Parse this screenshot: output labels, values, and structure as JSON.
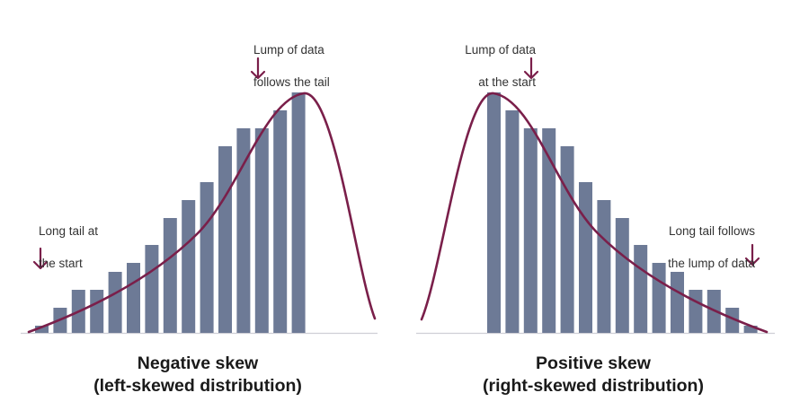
{
  "colors": {
    "bar": "#6d7a96",
    "curve": "#7a1f4a",
    "arrow": "#7a1f4a",
    "baseline": "#cfcfd6",
    "text": "#333333"
  },
  "chart_data": [
    {
      "type": "bar",
      "subtitle_line1": "Negative skew",
      "subtitle_line2": "(left-skewed distribution)",
      "values": [
        0.4,
        1.4,
        2.4,
        2.4,
        3.4,
        3.9,
        4.9,
        6.4,
        7.4,
        8.4,
        10.4,
        11.4,
        11.4,
        12.4,
        13.4
      ],
      "curve": "density",
      "annotations": [
        {
          "key": "tail",
          "line1": "Long tail at",
          "line2": "the start"
        },
        {
          "key": "lump",
          "line1": "Lump of data",
          "line2": "follows the tail"
        }
      ]
    },
    {
      "type": "bar",
      "subtitle_line1": "Positive skew",
      "subtitle_line2": "(right-skewed distribution)",
      "values": [
        13.4,
        12.4,
        11.4,
        11.4,
        10.4,
        8.4,
        7.4,
        6.4,
        4.9,
        3.9,
        3.4,
        2.4,
        2.4,
        1.4,
        0.4
      ],
      "curve": "density",
      "annotations": [
        {
          "key": "lump",
          "line1": "Lump of data",
          "line2": "at the start"
        },
        {
          "key": "tail",
          "line1": "Long tail follows",
          "line2": "the lump of data"
        }
      ]
    }
  ]
}
